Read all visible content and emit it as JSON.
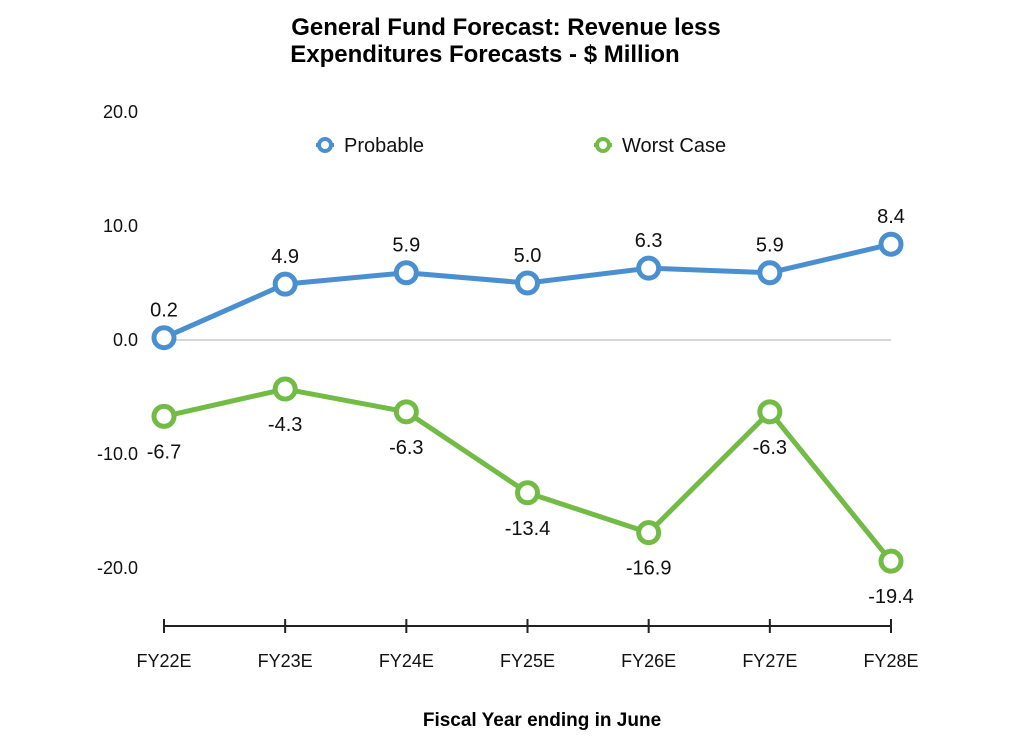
{
  "chart_data": {
    "type": "line",
    "title_lines": [
      "General Fund Forecast: Revenue less",
      "Expenditures Forecasts - $ Million"
    ],
    "xlabel": "Fiscal Year ending in June",
    "ylabel": "",
    "categories": [
      "FY22E",
      "FY23E",
      "FY24E",
      "FY25E",
      "FY26E",
      "FY27E",
      "FY28E"
    ],
    "y_ticks": [
      20,
      10,
      0,
      -10,
      -20
    ],
    "y_tick_labels": [
      "20.0",
      "10.0",
      "0.0",
      "-10.0",
      "-20.0"
    ],
    "ylim": [
      -25,
      20
    ],
    "grid": "zero-line only",
    "legend_position": "top-center",
    "series": [
      {
        "name": "Probable",
        "color": "#4a90d0",
        "values": [
          0.2,
          4.9,
          5.9,
          5.0,
          6.3,
          5.9,
          8.4
        ],
        "labels": [
          "0.2",
          "4.9",
          "5.9",
          "5.0",
          "6.3",
          "5.9",
          "8.4"
        ],
        "label_position": "above"
      },
      {
        "name": "Worst Case",
        "color": "#72bb45",
        "values": [
          -6.7,
          -4.3,
          -6.3,
          -13.4,
          -16.9,
          -6.3,
          -19.4
        ],
        "labels": [
          "-6.7",
          "-4.3",
          "-6.3",
          "-13.4",
          "-16.9",
          "-6.3",
          "-19.4"
        ],
        "label_position": "below"
      }
    ]
  }
}
